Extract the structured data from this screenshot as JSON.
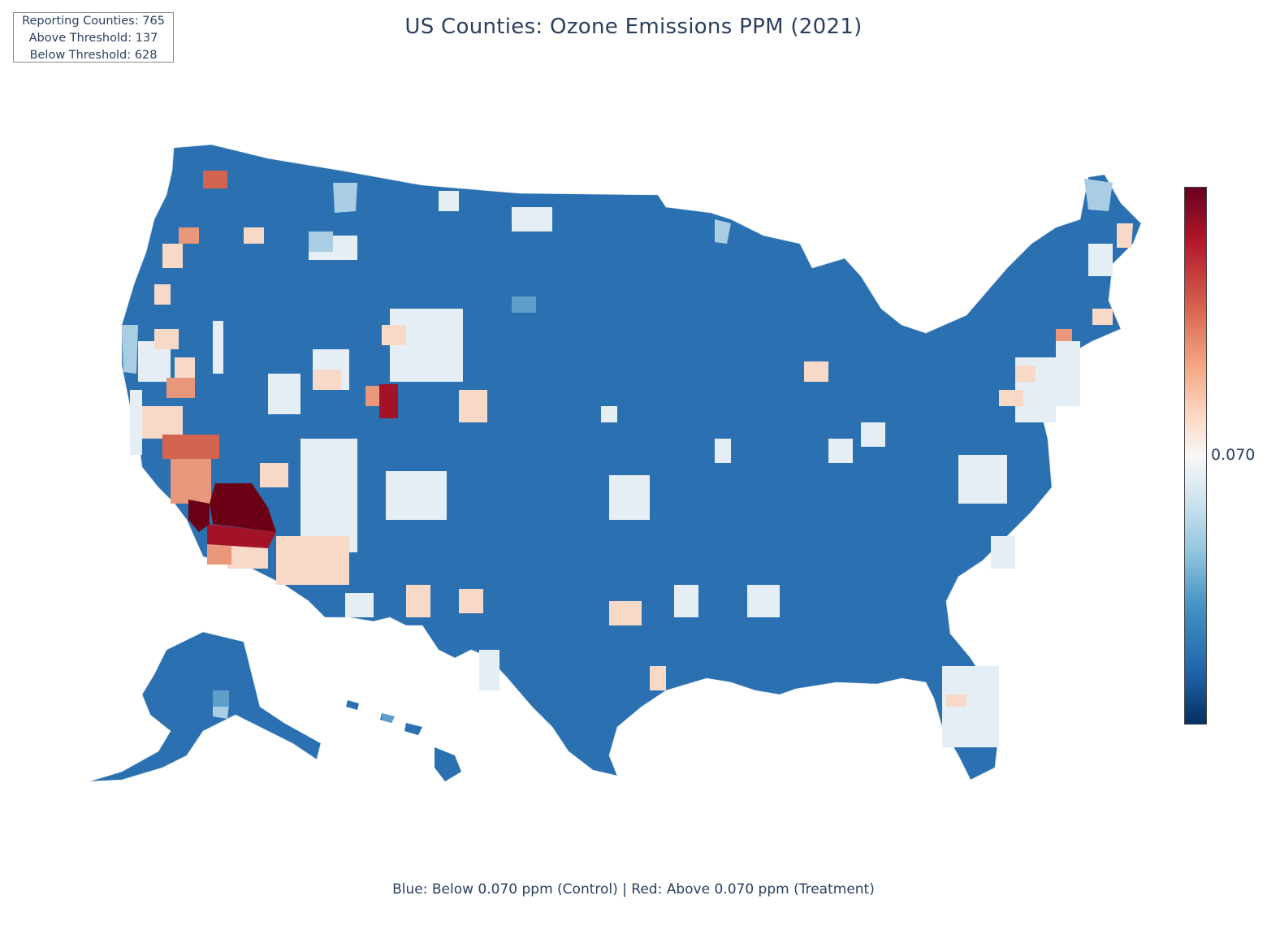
{
  "title": "US Counties: Ozone Emissions PPM (2021)",
  "stats": {
    "reporting": "Reporting Counties: 765",
    "above": "Above Threshold: 137",
    "below": "Below Threshold: 628"
  },
  "colorbar": {
    "tick_label": "0.070",
    "threshold": 0.07,
    "colors": [
      "#67001f",
      "#b2182b",
      "#d6604d",
      "#f4a582",
      "#fddbc7",
      "#f7f7f7",
      "#d1e5f0",
      "#92c5de",
      "#4393c3",
      "#2166ac",
      "#053061"
    ]
  },
  "caption": "Blue: Below 0.070 ppm (Control) | Red: Above 0.070 ppm (Treatment)",
  "map_colors": {
    "base": "#2b71b1",
    "light": "#e6eef5",
    "pale_blue": "#a9cde3",
    "mid_blue": "#5f9ec9",
    "pale_red": "#f8d9c8",
    "mid_red": "#e8977a",
    "strong_red": "#d36550",
    "dark_red": "#6b0015",
    "deep_red": "#a31328"
  }
}
